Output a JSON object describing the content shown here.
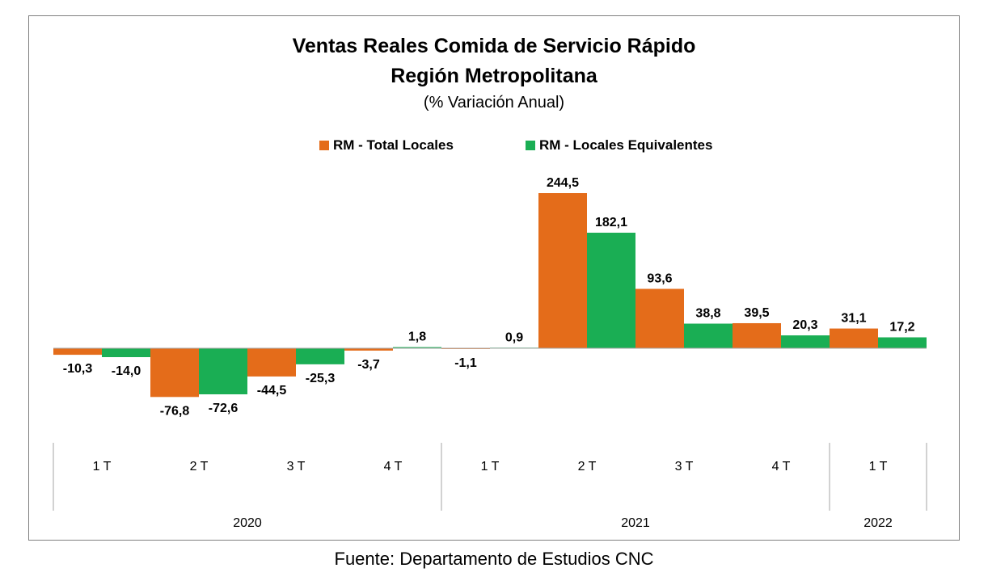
{
  "chart_data": {
    "type": "bar",
    "title": "Ventas Reales Comida de Servicio Rápido",
    "title_line2": "Región Metropolitana",
    "subtitle": "(% Variación Anual)",
    "legend_position": "top-center",
    "categories": [
      "1 T",
      "2 T",
      "3 T",
      "4 T",
      "1 T",
      "2 T",
      "3 T",
      "4 T",
      "1 T"
    ],
    "groups": [
      {
        "label": "2020",
        "count": 4
      },
      {
        "label": "2021",
        "count": 4
      },
      {
        "label": "2022",
        "count": 1
      }
    ],
    "series": [
      {
        "name": "RM - Total Locales",
        "color": "#e46c1a",
        "values": [
          -10.3,
          -76.8,
          -44.5,
          -3.7,
          -1.1,
          244.5,
          93.6,
          39.5,
          31.1
        ],
        "labels": [
          "-10,3",
          "-76,8",
          "-44,5",
          "-3,7",
          "-1,1",
          "244,5",
          "93,6",
          "39,5",
          "31,1"
        ]
      },
      {
        "name": "RM - Locales Equivalentes",
        "color": "#1aae54",
        "values": [
          -14.0,
          -72.6,
          -25.3,
          1.8,
          0.9,
          182.1,
          38.8,
          20.3,
          17.2
        ],
        "labels": [
          "-14,0",
          "-72,6",
          "-25,3",
          "1,8",
          "0,9",
          "182,1",
          "38,8",
          "20,3",
          "17,2"
        ]
      }
    ]
  },
  "source": "Fuente: Departamento de Estudios CNC"
}
